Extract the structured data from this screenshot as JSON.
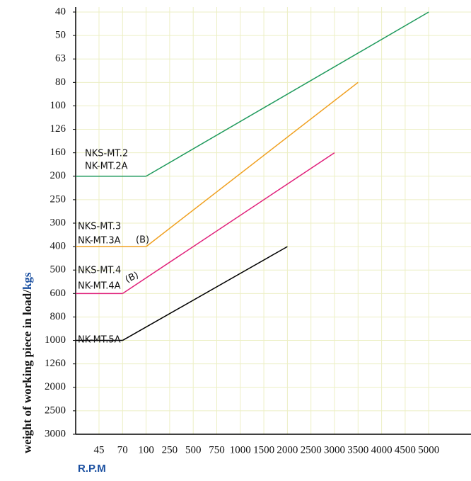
{
  "chart_data": {
    "type": "line",
    "y_label": "weight of working piece in load/",
    "y_label_unit": "kgs",
    "x_label": "R.P.M",
    "xticks": [
      45,
      70,
      100,
      250,
      500,
      750,
      1000,
      1500,
      2000,
      2500,
      3000,
      3500,
      4000,
      4500,
      5000
    ],
    "yticks": [
      40,
      50,
      63,
      80,
      100,
      126,
      160,
      200,
      250,
      300,
      400,
      500,
      600,
      800,
      1000,
      1260,
      2000,
      2500,
      3000
    ],
    "grid": true,
    "series": [
      {
        "labels": [
          "NKS-MT.2",
          "NK-MT.2A"
        ],
        "color": "#1f9a5c",
        "x": [
          100,
          5000
        ],
        "values": [
          200,
          40
        ]
      },
      {
        "labels": [
          "NKS-MT.3",
          "NK-MT.3A"
        ],
        "note": "(B)",
        "color": "#f0a020",
        "x": [
          100,
          3500
        ],
        "values": [
          400,
          80
        ]
      },
      {
        "labels": [
          "NKS-MT.4",
          "NK-MT.4A"
        ],
        "note": "(B)",
        "color": "#e0207a",
        "x": [
          70,
          3000
        ],
        "values": [
          600,
          160
        ]
      },
      {
        "labels": [
          "NK-MT.5A"
        ],
        "color": "#000000",
        "x": [
          70,
          2000
        ],
        "values": [
          1000,
          400
        ]
      }
    ]
  }
}
